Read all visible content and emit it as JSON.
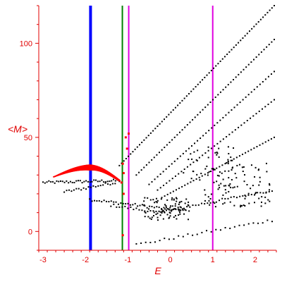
{
  "chart_data": {
    "type": "scatter",
    "xlabel": "E",
    "ylabel": "<M>",
    "xlim": [
      -3.1,
      2.5
    ],
    "ylim": [
      -10,
      120
    ],
    "xticks": [
      -3,
      -2,
      -1,
      0,
      1,
      2
    ],
    "yticks": [
      0,
      50,
      100
    ],
    "grid": false,
    "colors": {
      "axis": "#e00000",
      "tick_label": "#e00000",
      "highlight_points": "#ff0000",
      "scatter_points": "#000000",
      "line_blue": "#0000ff",
      "line_green": "#008000",
      "line_magenta": "#e000e0"
    },
    "vertical_lines": [
      {
        "x": -1.88,
        "color": "#0000ff"
      },
      {
        "x": -1.13,
        "color": "#008000"
      },
      {
        "x": -0.98,
        "color": "#e000e0"
      },
      {
        "x": 1.0,
        "color": "#e000e0"
      }
    ],
    "series": [
      {
        "color": "#ff0000",
        "arc": {
          "x_start": -2.75,
          "x_peak": -1.9,
          "x_end": -1.2,
          "y_start": 29,
          "y_peak": 34,
          "y_end": 27
        },
        "points": [
          [
            -1.05,
            50
          ],
          [
            -0.98,
            52
          ],
          [
            -1.02,
            44
          ],
          [
            -1.12,
            36
          ],
          [
            -1.1,
            31
          ],
          [
            -1.15,
            26
          ],
          [
            -1.1,
            20
          ],
          [
            -1.12,
            -2
          ]
        ]
      },
      {
        "color": "#000000",
        "ladders": [
          {
            "x_start": -1.2,
            "x_end": 2.45,
            "y_start": 35,
            "y_end": 120,
            "n": 70
          },
          {
            "x_start": -0.8,
            "x_end": 2.45,
            "y_start": 30,
            "y_end": 102,
            "n": 55
          },
          {
            "x_start": -0.5,
            "x_end": 2.45,
            "y_start": 25,
            "y_end": 85,
            "n": 45
          },
          {
            "x_start": -0.3,
            "x_end": 2.45,
            "y_start": 22,
            "y_end": 70,
            "n": 40
          },
          {
            "x_start": -0.2,
            "x_end": 2.45,
            "y_start": 18,
            "y_end": 50,
            "n": 40
          }
        ],
        "curves": [
          {
            "x_start": -3.0,
            "x_end": -1.2,
            "y_start": 26,
            "y_end": 27,
            "n": 40
          },
          {
            "x_start": -2.5,
            "x_end": -1.3,
            "y_start": 21,
            "y_end": 26,
            "n": 22
          },
          {
            "x_start": -1.9,
            "x_end": 0.3,
            "y_start": 17,
            "y_end": 11,
            "n": 40
          },
          {
            "x_start": -1.4,
            "x_end": 0.0,
            "y_start": 14,
            "y_end": 9,
            "n": 22
          },
          {
            "x_start": -0.3,
            "x_end": 2.4,
            "y_start": 10,
            "y_end": 22,
            "n": 40
          },
          {
            "x_start": -0.8,
            "x_end": 2.4,
            "y_start": -7,
            "y_end": 6,
            "n": 30
          }
        ],
        "clusters": [
          {
            "x_center": -0.1,
            "y_center": 12,
            "x_spread": 0.55,
            "y_spread": 6,
            "n": 80
          },
          {
            "x_center": 1.6,
            "y_center": 25,
            "x_spread": 0.8,
            "y_spread": 12,
            "n": 90
          },
          {
            "x_center": 0.9,
            "y_center": 35,
            "x_spread": 0.6,
            "y_spread": 10,
            "n": 40
          }
        ]
      }
    ]
  }
}
